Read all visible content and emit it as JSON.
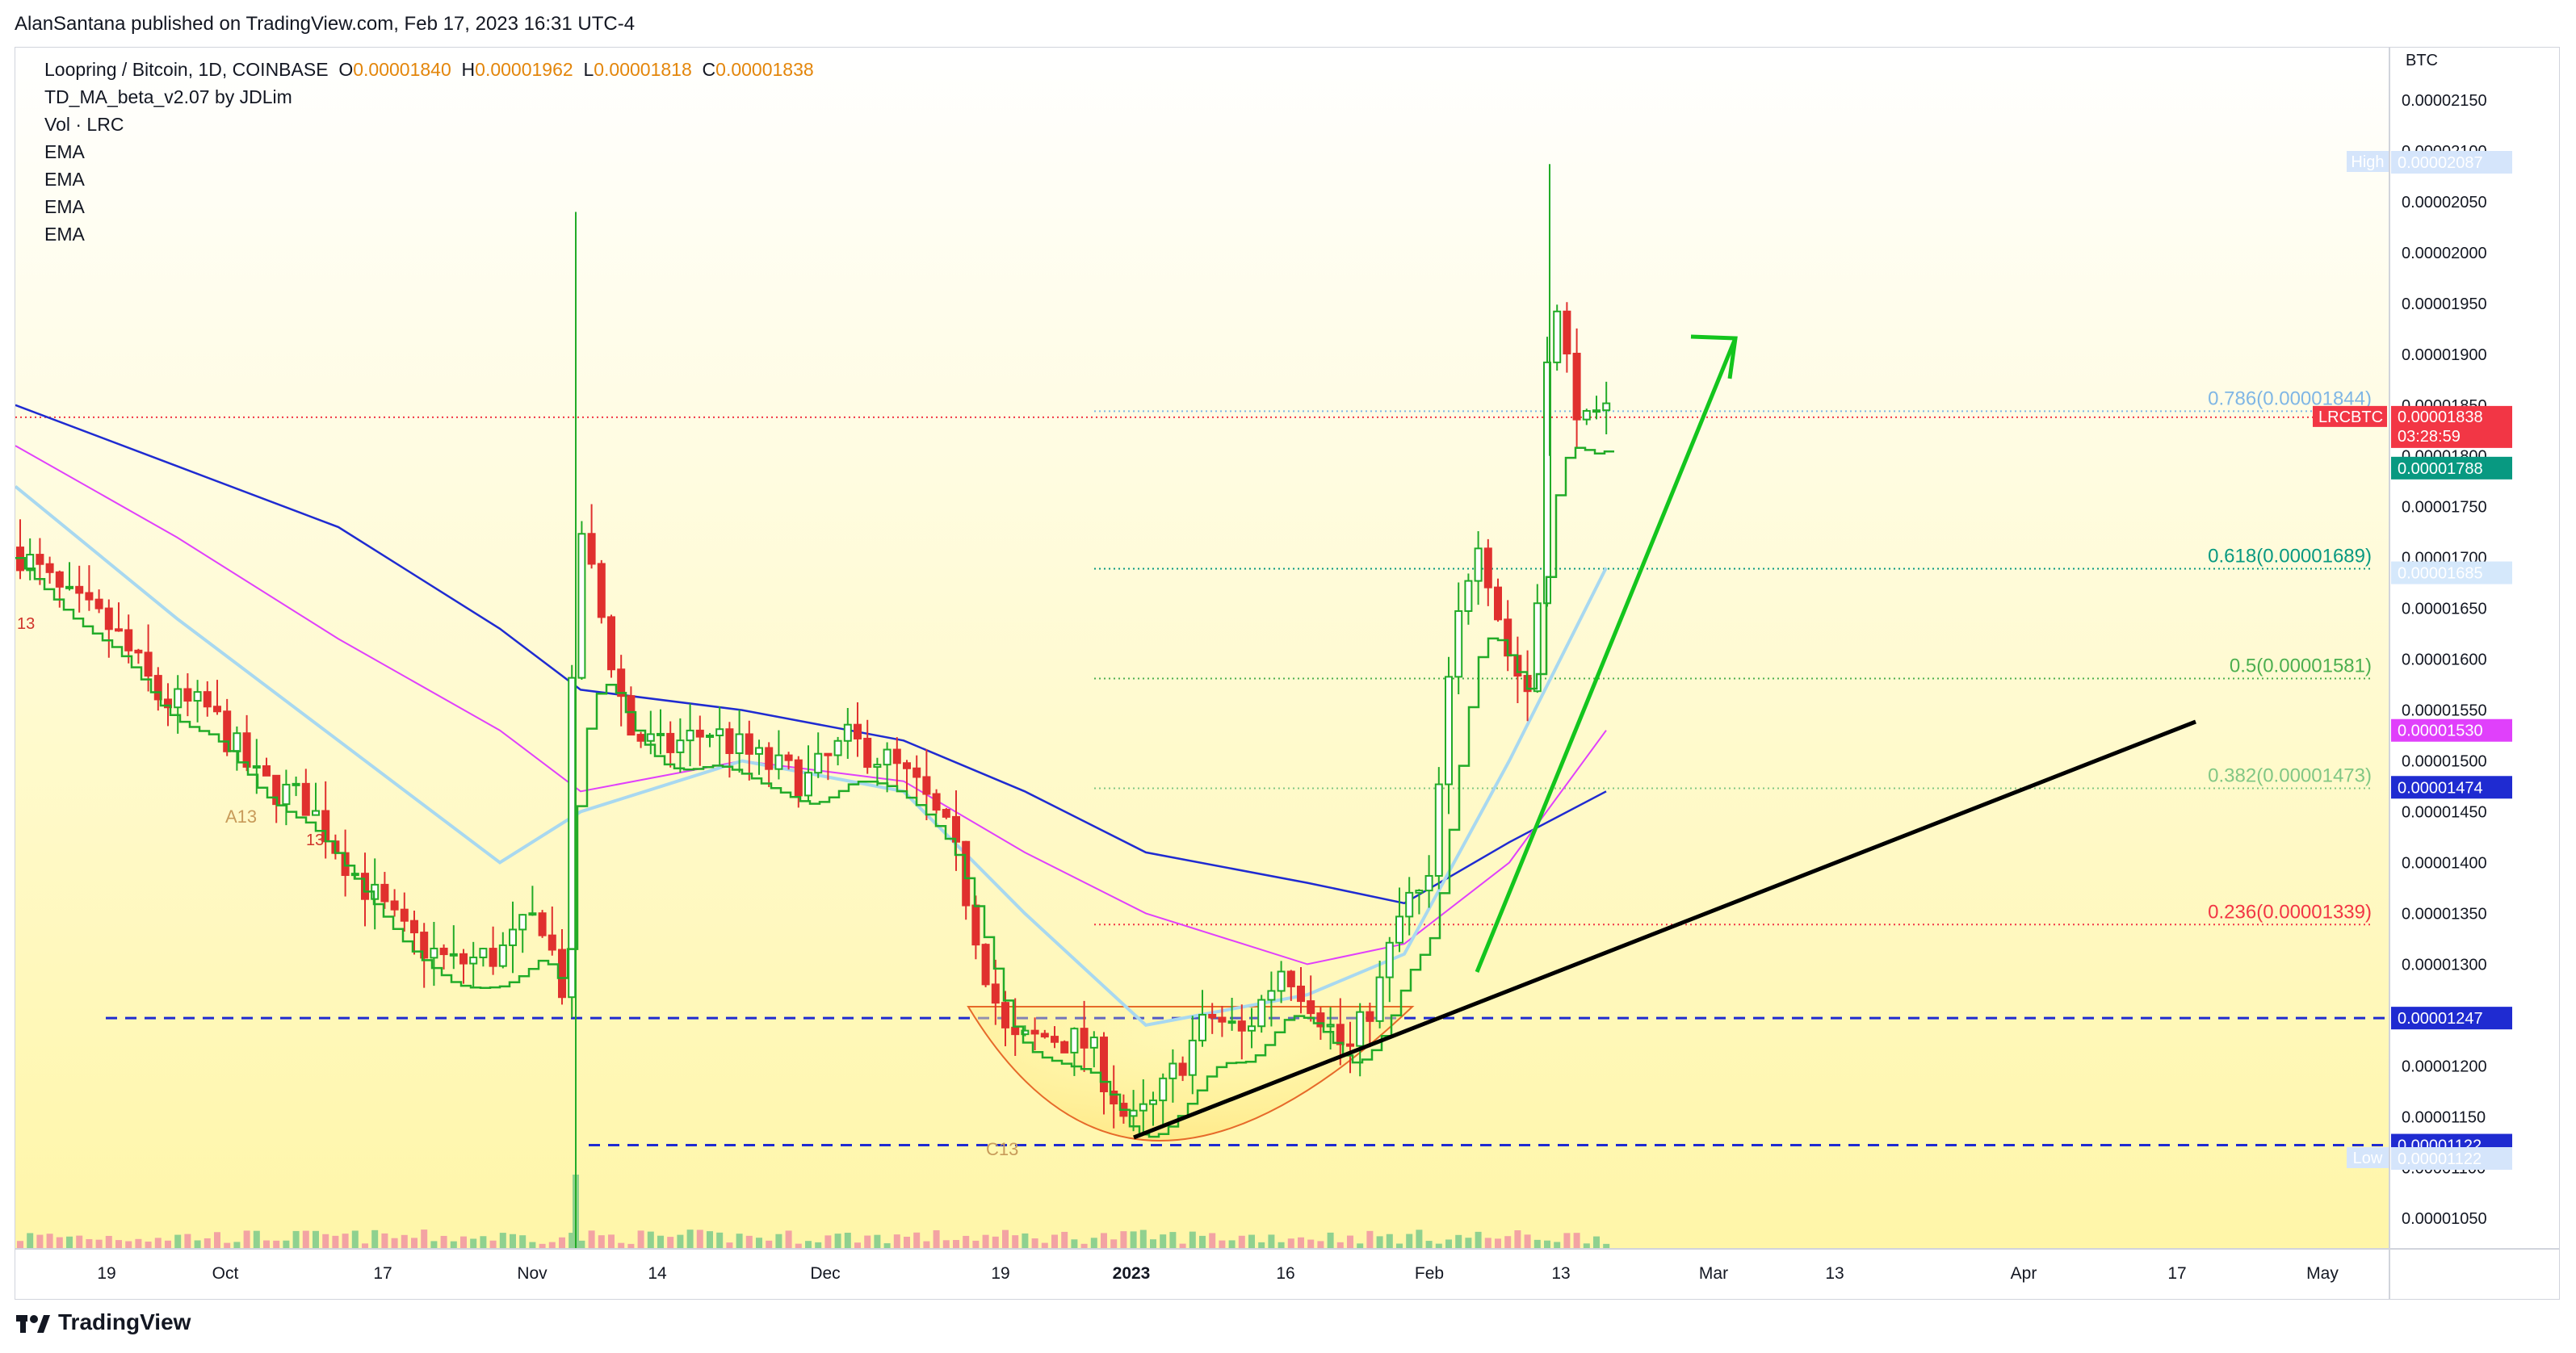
{
  "publisher": "AlanSantana published on TradingView.com, Feb 17, 2023 16:31 UTC-4",
  "legend": {
    "symbol": "Loopring / Bitcoin, 1D, COINBASE",
    "open_label": "O",
    "open": "0.00001840",
    "high_label": "H",
    "high": "0.00001962",
    "low_label": "L",
    "low": "0.00001818",
    "close_label": "C",
    "close": "0.00001838",
    "indicators": [
      "TD_MA_beta_v2.07 by JDLim",
      "Vol · LRC",
      "EMA",
      "EMA",
      "EMA",
      "EMA"
    ]
  },
  "brand": "TradingView",
  "chart_data": {
    "type": "candlestick",
    "currency": "BTC",
    "ylim": [
      1.02e-05,
      2.2e-05
    ],
    "y_ticks": [
      "0.00002150",
      "0.00002100",
      "0.00002050",
      "0.00002000",
      "0.00001950",
      "0.00001900",
      "0.00001850",
      "0.00001800",
      "0.00001750",
      "0.00001700",
      "0.00001650",
      "0.00001600",
      "0.00001550",
      "0.00001500",
      "0.00001450",
      "0.00001400",
      "0.00001350",
      "0.00001300",
      "0.00001250",
      "0.00001200",
      "0.00001150",
      "0.00001100",
      "0.00001050"
    ],
    "x_ticks": [
      "19",
      "Oct",
      "17",
      "Nov",
      "14",
      "Dec",
      "19",
      "2023",
      "16",
      "Feb",
      "13",
      "Mar",
      "13",
      "Apr",
      "17",
      "May"
    ],
    "price_tags": [
      {
        "label": "High",
        "value": "0.00002087",
        "color": "#d5e5fb",
        "text": "#131722"
      },
      {
        "label": "LRCBTC",
        "value": "0.00001838",
        "sub": "03:28:59",
        "color": "#f23645",
        "text": "#ffffff"
      },
      {
        "label": "",
        "value": "0.00001788",
        "color": "#089981",
        "text": "#ffffff"
      },
      {
        "label": "",
        "value": "0.00001685",
        "color": "#d5e8fb",
        "text": "#131722"
      },
      {
        "label": "",
        "value": "0.00001530",
        "color": "#e040fb",
        "text": "#ffffff"
      },
      {
        "label": "",
        "value": "0.00001474",
        "color": "#1f2bd1",
        "text": "#ffffff"
      },
      {
        "label": "",
        "value": "0.00001247",
        "color": "#1f2bd1",
        "text": "#ffffff"
      },
      {
        "label": "",
        "value": "0.00001122",
        "color": "#1f2bd1",
        "text": "#ffffff"
      },
      {
        "label": "Low",
        "value": "0.00001122",
        "color": "#d5e5fb",
        "text": "#131722"
      }
    ],
    "fib_levels": [
      {
        "label": "0.786(0.00001844)",
        "price": 1.844e-05,
        "color": "#7fb6e5"
      },
      {
        "label": "0.618(0.00001689)",
        "price": 1.689e-05,
        "color": "#089981"
      },
      {
        "label": "0.5(0.00001581)",
        "price": 1.581e-05,
        "color": "#4caf50"
      },
      {
        "label": "0.382(0.00001473)",
        "price": 1.473e-05,
        "color": "#81c784"
      },
      {
        "label": "0.236(0.00001339)",
        "price": 1.339e-05,
        "color": "#f23645"
      }
    ],
    "support_levels": [
      1.247e-05,
      1.122e-05
    ],
    "annotations": [
      "A13",
      "13",
      "13",
      "C13"
    ],
    "colors": {
      "up": "#22ab28",
      "down": "#e0302e",
      "ema_fast": "#a8d8f0",
      "ema_mid": "#e040fb",
      "ema_slow": "#1f2bd1",
      "background_top": "#ffffff",
      "background_bottom": "#fff7b0"
    }
  }
}
